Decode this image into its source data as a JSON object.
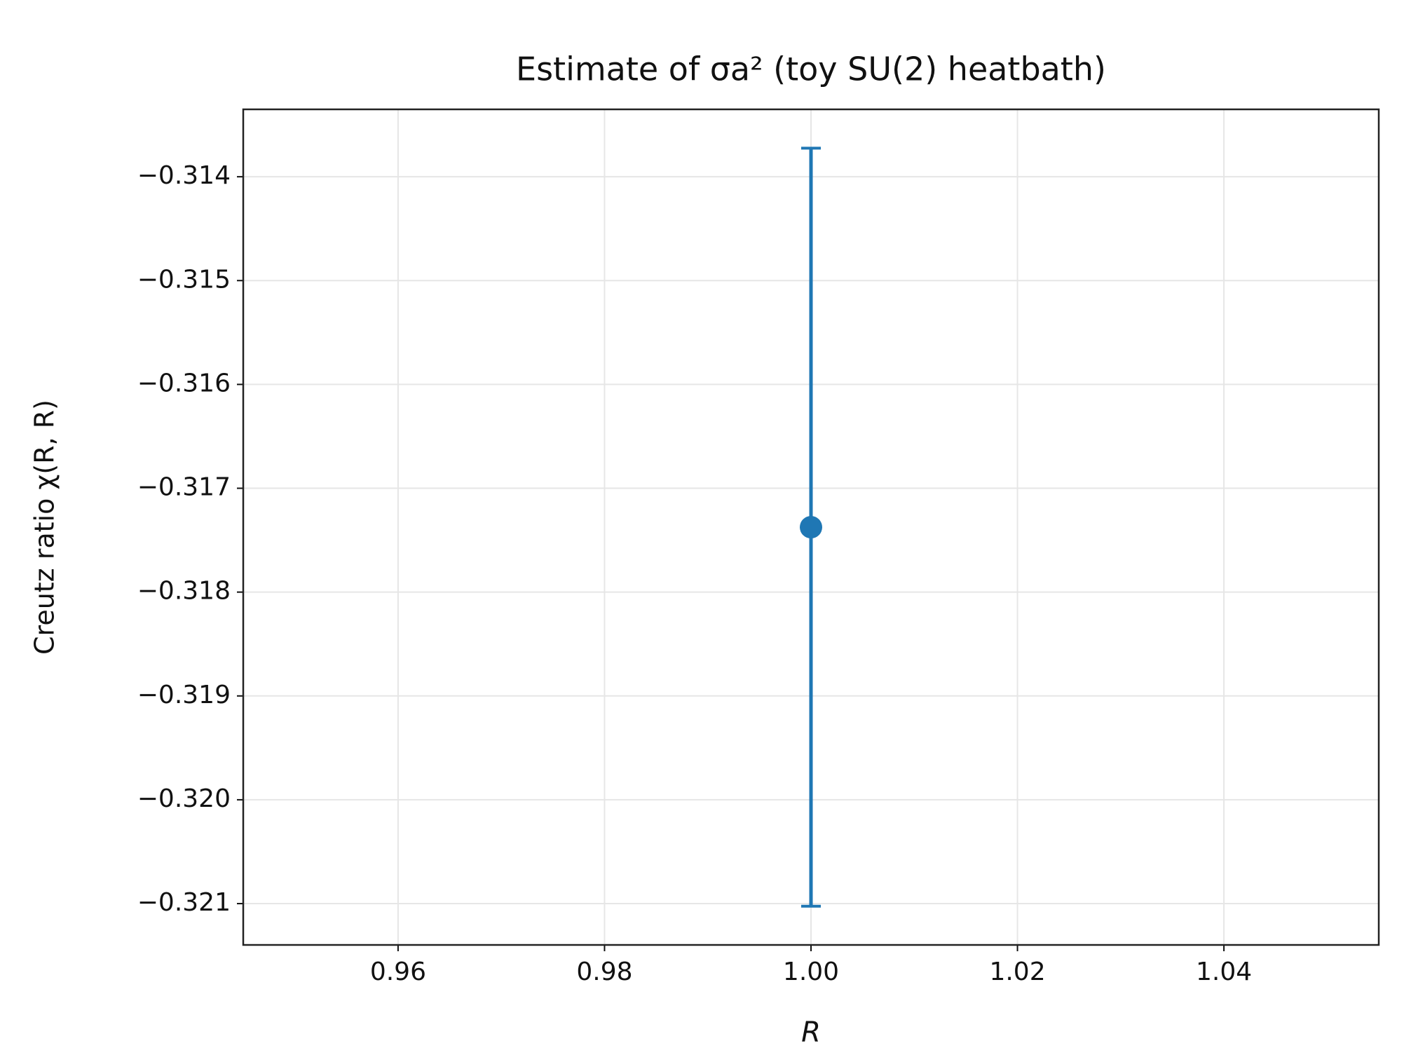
{
  "chart_data": {
    "type": "errorbar",
    "title": "Estimate of σa² (toy SU(2) heatbath)",
    "xlabel": "R",
    "ylabel": "Creutz ratio χ(R, R)",
    "x": [
      1.0
    ],
    "values": [
      -0.317375
    ],
    "errors": [
      0.00365
    ],
    "color": "#1f77b4",
    "xlim": [
      0.945,
      1.055
    ],
    "ylim": [
      -0.321398,
      -0.313351
    ],
    "xticks": [
      0.96,
      0.98,
      {
        "value": 1.0,
        "label": "1.00"
      },
      1.02,
      1.04
    ],
    "yticks": [
      {
        "value": -0.321,
        "label": "−0.321"
      },
      {
        "value": -0.32,
        "label": "−0.320"
      },
      {
        "value": -0.319,
        "label": "−0.319"
      },
      {
        "value": -0.318,
        "label": "−0.318"
      },
      {
        "value": -0.317,
        "label": "−0.317"
      },
      {
        "value": -0.316,
        "label": "−0.316"
      },
      {
        "value": -0.315,
        "label": "−0.315"
      },
      {
        "value": -0.314,
        "label": "−0.314"
      }
    ],
    "grid": true
  }
}
